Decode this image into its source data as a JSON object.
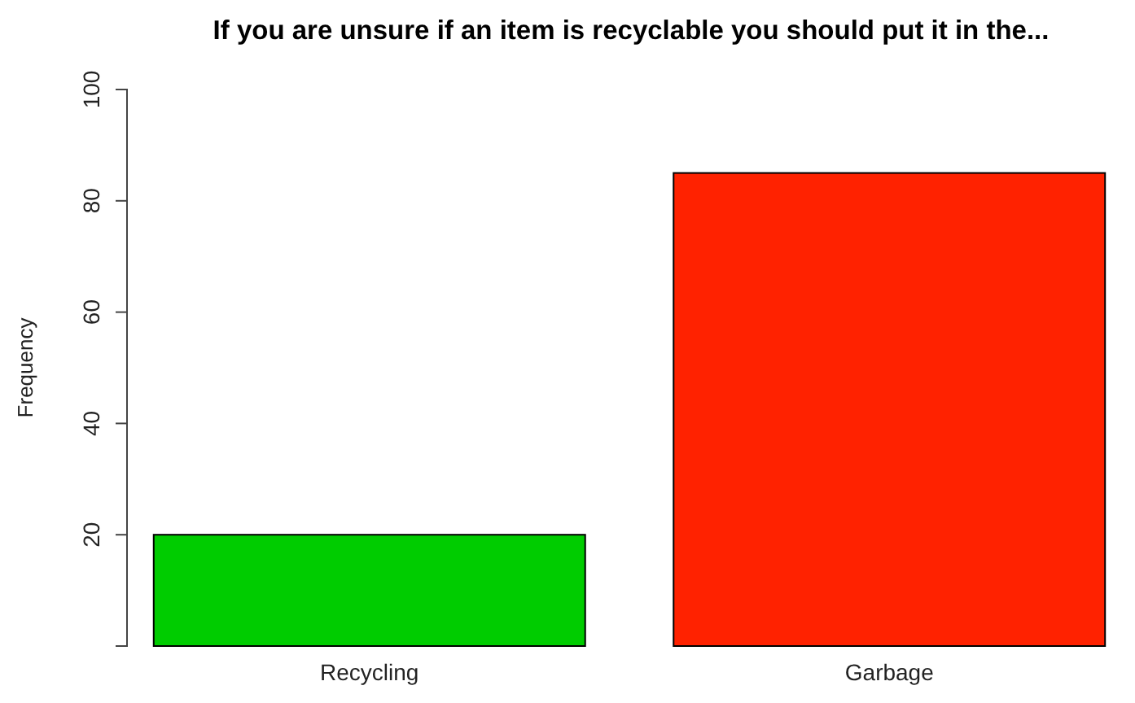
{
  "chart_data": {
    "type": "bar",
    "title": "If you are unsure if an item is recyclable you should put it in the...",
    "ylabel": "Frequency",
    "categories": [
      "Recycling",
      "Garbage"
    ],
    "values": [
      20,
      85
    ],
    "colors": [
      "#00cc00",
      "#ff2200"
    ],
    "ylim": [
      0,
      100
    ],
    "yticks": [
      20,
      40,
      60,
      80,
      100
    ],
    "grid": false
  }
}
